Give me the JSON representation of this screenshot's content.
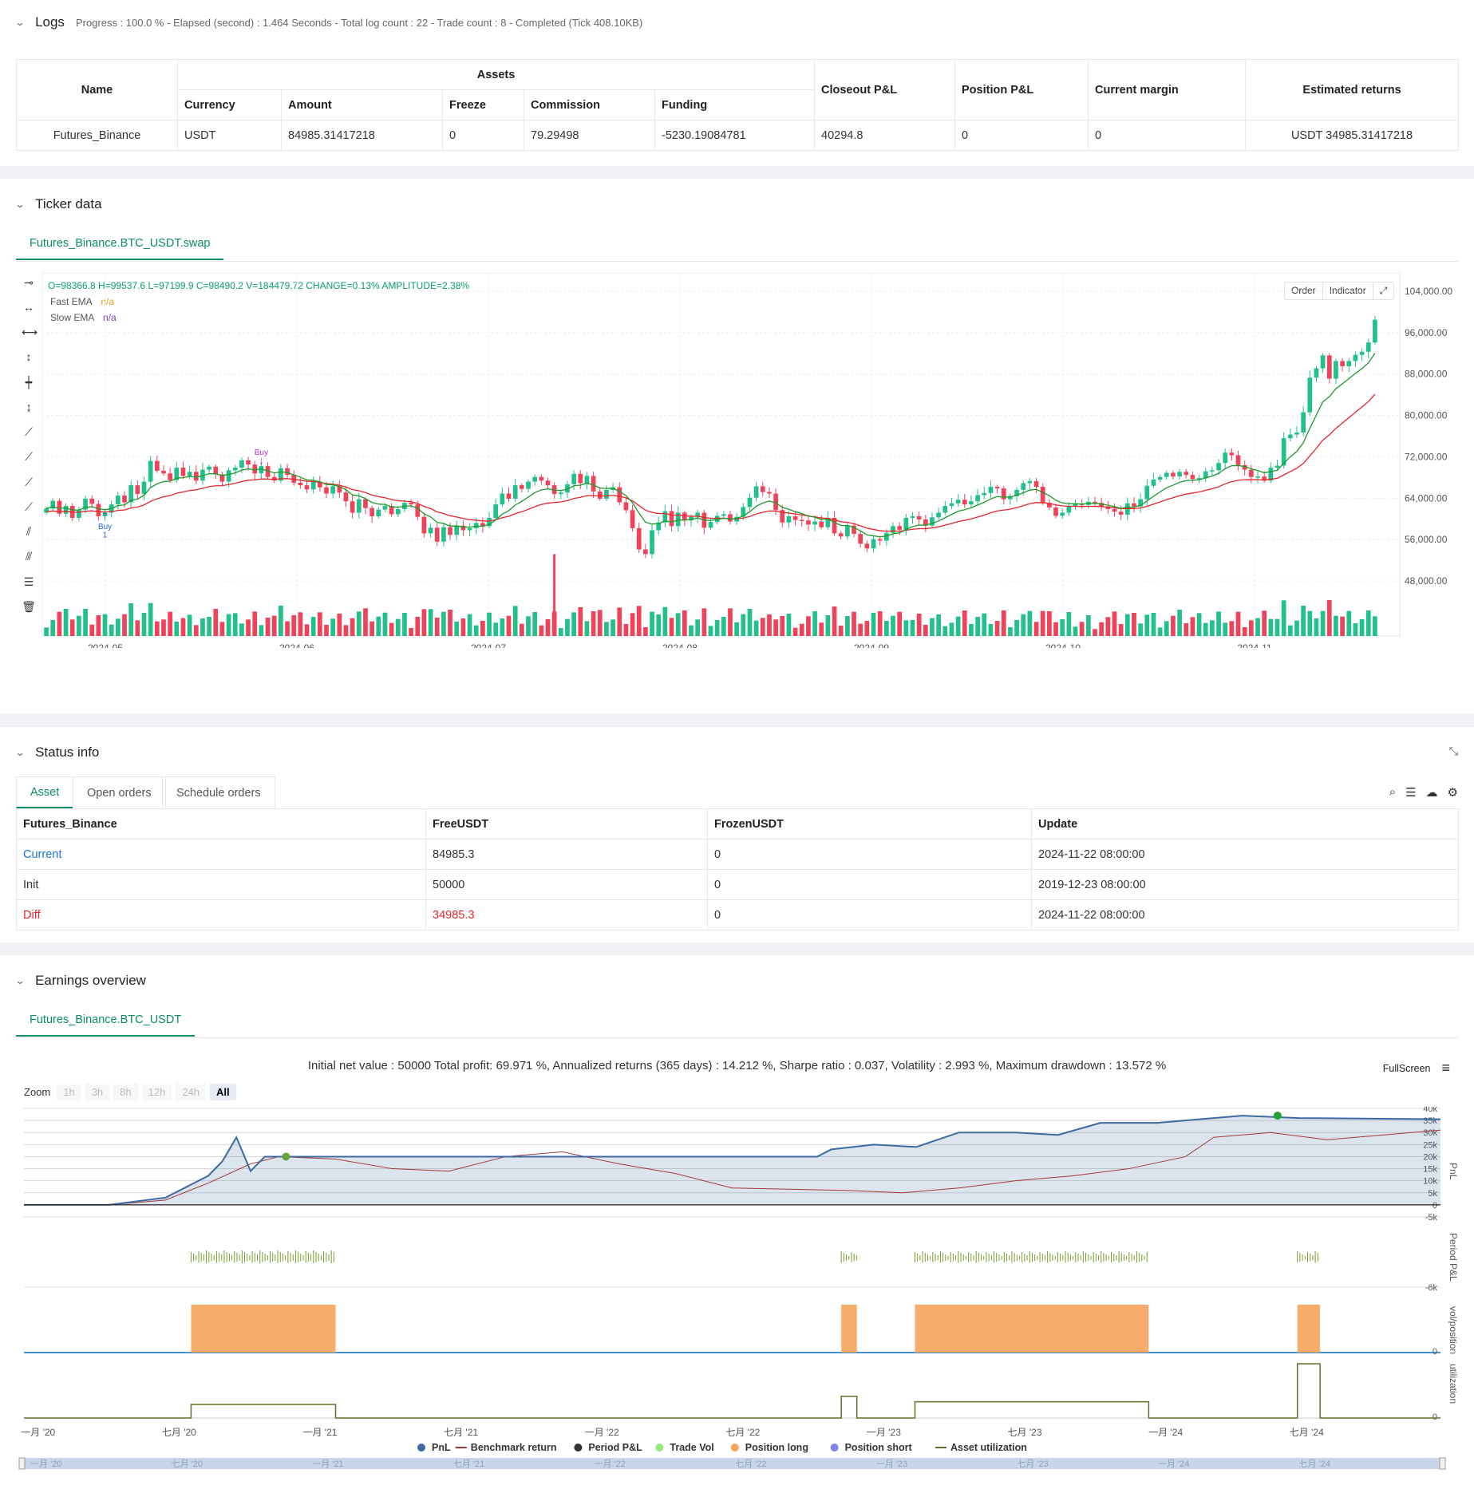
{
  "logs": {
    "title": "Logs",
    "summary": "Progress : 100.0 % - Elapsed (second) : 1.464  Seconds - Total log count : 22 - Trade count : 8 - Completed (Tick 408.10KB)",
    "headers": {
      "name": "Name",
      "assets": "Assets",
      "currency": "Currency",
      "amount": "Amount",
      "freeze": "Freeze",
      "commission": "Commission",
      "funding": "Funding",
      "closeout": "Closeout P&L",
      "position": "Position P&L",
      "margin": "Current margin",
      "returns": "Estimated returns"
    },
    "row": {
      "name": "Futures_Binance",
      "currency": "USDT",
      "amount": "84985.31417218",
      "freeze": "0",
      "commission": "79.29498",
      "funding": "-5230.19084781",
      "closeout": "40294.8",
      "position": "0",
      "margin": "0",
      "returns": "USDT 34985.31417218"
    }
  },
  "ticker": {
    "title": "Ticker data",
    "tab": "Futures_Binance.BTC_USDT.swap",
    "ohlc": "O=98366.8  H=99537.6  L=97199.9  C=98490.2  V=184479.72  CHANGE=0.13%  AMPLITUDE=2.38%",
    "fast_label": "Fast EMA",
    "fast_val": "n/a",
    "slow_label": "Slow EMA",
    "slow_val": "n/a",
    "order_btn": "Order",
    "indicator_btn": "Indicator",
    "buy_top": "Buy",
    "buy_bottom": "Buy",
    "buy_bottom_count": "1"
  },
  "chart_data": [
    {
      "type": "candlestick",
      "title": "Futures_Binance.BTC_USDT.swap",
      "x_ticks": [
        "2024-05",
        "2024-06",
        "2024-07",
        "2024-08",
        "2024-09",
        "2024-10",
        "2024-11"
      ],
      "y_ticks": [
        "104,000.00",
        "96,000.00",
        "88,000.00",
        "80,000.00",
        "72,000.00",
        "64,000.00",
        "56,000.00",
        "48,000.00"
      ],
      "ylim": [
        44000,
        106000
      ],
      "series": [
        {
          "name": "Fast EMA",
          "color": "#1a9a2a"
        },
        {
          "name": "Slow EMA",
          "color": "#e8252c"
        }
      ],
      "closes": [
        62000,
        63500,
        61000,
        62500,
        60200,
        61800,
        63900,
        62900,
        60500,
        61200,
        62800,
        64500,
        63200,
        66500,
        64800,
        67200,
        71200,
        69300,
        68800,
        67500,
        69900,
        68300,
        69100,
        67400,
        69500,
        70100,
        68600,
        67200,
        69400,
        69900,
        71300,
        70500,
        68800,
        70200,
        68100,
        67400,
        69800,
        68500,
        67000,
        66500,
        65700,
        67200,
        66100,
        64900,
        66300,
        65100,
        63400,
        61200,
        63800,
        62100,
        60500,
        61800,
        62500,
        60900,
        61900,
        63100,
        62800,
        60400,
        57200,
        58300,
        55600,
        58400,
        56900,
        58700,
        57800,
        58200,
        59200,
        58600,
        60200,
        62800,
        64900,
        63900,
        66500,
        65800,
        67200,
        68100,
        67400,
        66500,
        64800,
        65100,
        66700,
        68700,
        66900,
        68300,
        65300,
        63900,
        65600,
        66100,
        63200,
        61700,
        58200,
        54100,
        53200,
        57800,
        59300,
        61500,
        58600,
        61200,
        59700,
        60400,
        61200,
        58300,
        59400,
        60600,
        60900,
        59500,
        60400,
        62300,
        64100,
        66300,
        65200,
        64900,
        61700,
        59300,
        60500,
        59800,
        59700,
        58900,
        59500,
        58400,
        60200,
        57200,
        56600,
        58700,
        57100,
        55200,
        54300,
        56100,
        55800,
        57300,
        58600,
        57900,
        60200,
        60500,
        59900,
        58700,
        60300,
        61200,
        62500,
        63000,
        63700,
        62800,
        63400,
        64600,
        65000,
        66200,
        65900,
        63800,
        64400,
        65600,
        66900,
        67300,
        66200,
        63100,
        62200,
        60600,
        61200,
        62400,
        62900,
        62700,
        63300,
        63100,
        62400,
        61900,
        61400,
        60800,
        63000,
        62400,
        63800,
        66400,
        67600,
        68100,
        68900,
        68200,
        69100,
        68500,
        67700,
        67900,
        69200,
        69400,
        70800,
        72800,
        72300,
        70400,
        69500,
        68100,
        68200,
        67400,
        69900,
        70300,
        75600,
        76300,
        76700,
        80600,
        87300,
        89100,
        91600,
        87100,
        90500,
        89500,
        90500,
        91700,
        92300,
        94100,
        98500
      ],
      "volume_note": "volume bars colored by candle direction"
    },
    {
      "type": "line",
      "title": "Initial net value : 50000 Total profit: 69.971 %, Annualized returns (365 days) : 14.212 %, Sharpe ratio : 0.037, Volatility : 2.993 %, Maximum drawdown : 13.572 %",
      "x_ticks": [
        "一月 '20",
        "七月 '20",
        "一月 '21",
        "七月 '21",
        "一月 '22",
        "七月 '22",
        "一月 '23",
        "七月 '23",
        "一月 '24",
        "七月 '24"
      ],
      "pnl_y_ticks": [
        "40k",
        "35k",
        "30k",
        "25k",
        "20k",
        "15k",
        "10k",
        "5k",
        "0",
        "-5k"
      ],
      "ylim": [
        -5000,
        40000
      ],
      "series": [
        {
          "name": "PnL",
          "color": "#3d6aa1"
        },
        {
          "name": "Benchmark return",
          "color": "#a23a3a"
        },
        {
          "name": "Period P&L",
          "color": "#333333"
        },
        {
          "name": "Trade Vol",
          "color": "#90ed7d"
        },
        {
          "name": "Position long",
          "color": "#f7a35c"
        },
        {
          "name": "Position short",
          "color": "#8085e9"
        },
        {
          "name": "Asset utilization",
          "color": "#6b6b2a"
        }
      ],
      "pnl_points": [
        [
          0,
          0
        ],
        [
          6,
          0
        ],
        [
          10,
          3000
        ],
        [
          13,
          12000
        ],
        [
          14,
          18000
        ],
        [
          15,
          28000
        ],
        [
          16,
          14000
        ],
        [
          17,
          20000
        ],
        [
          20,
          20000
        ],
        [
          56,
          20000
        ],
        [
          57,
          23000
        ],
        [
          60,
          25000
        ],
        [
          63,
          24000
        ],
        [
          66,
          30000
        ],
        [
          70,
          30000
        ],
        [
          73,
          29000
        ],
        [
          76,
          34000
        ],
        [
          80,
          34000
        ],
        [
          86,
          37000
        ],
        [
          90,
          36000
        ],
        [
          100,
          35500
        ]
      ],
      "benchmark_points": [
        [
          0,
          0
        ],
        [
          6,
          0
        ],
        [
          10,
          2000
        ],
        [
          13,
          9000
        ],
        [
          16,
          17000
        ],
        [
          18,
          20000
        ],
        [
          22,
          19000
        ],
        [
          26,
          15000
        ],
        [
          30,
          14000
        ],
        [
          34,
          20000
        ],
        [
          38,
          22000
        ],
        [
          42,
          17000
        ],
        [
          46,
          13000
        ],
        [
          50,
          7000
        ],
        [
          54,
          6500
        ],
        [
          58,
          6000
        ],
        [
          62,
          5000
        ],
        [
          66,
          7000
        ],
        [
          70,
          10000
        ],
        [
          74,
          12000
        ],
        [
          78,
          15000
        ],
        [
          82,
          20000
        ],
        [
          84,
          28000
        ],
        [
          88,
          30000
        ],
        [
          92,
          27000
        ],
        [
          96,
          29000
        ],
        [
          100,
          31000
        ]
      ],
      "position_long_spans": [
        [
          11.8,
          22.0
        ],
        [
          57.7,
          58.8
        ],
        [
          62.9,
          79.4
        ],
        [
          89.9,
          91.5
        ]
      ],
      "utilization_spans": [
        [
          11.8,
          22.0,
          0.25
        ],
        [
          57.7,
          58.8,
          0.4
        ],
        [
          62.9,
          79.4,
          0.3
        ],
        [
          89.9,
          91.5,
          1.0
        ]
      ]
    }
  ],
  "status": {
    "title": "Status info",
    "tabs": [
      "Asset",
      "Open orders",
      "Schedule orders"
    ],
    "headers": [
      "Futures_Binance",
      "FreeUSDT",
      "FrozenUSDT",
      "Update"
    ],
    "rows": [
      {
        "label": "Current",
        "free": "84985.3",
        "frozen": "0",
        "update": "2024-11-22 08:00:00",
        "color": "#1a73e8"
      },
      {
        "label": "Init",
        "free": "50000",
        "frozen": "0",
        "update": "2019-12-23 08:00:00",
        "color": "#333333"
      },
      {
        "label": "Diff",
        "free": "34985.3",
        "frozen": "0",
        "update": "2024-11-22 08:00:00",
        "color": "#e8252c"
      }
    ]
  },
  "earnings": {
    "title": "Earnings overview",
    "tab": "Futures_Binance.BTC_USDT",
    "summary": "Initial net value : 50000 Total profit: 69.971 %, Annualized returns (365 days) : 14.212 %, Sharpe ratio : 0.037, Volatility : 2.993 %, Maximum drawdown : 13.572 %",
    "fullscreen": "FullScreen",
    "zoom_label": "Zoom",
    "zoom_options": [
      "1h",
      "3h",
      "8h",
      "12h",
      "24h",
      "All"
    ],
    "axis_titles": [
      "PnL",
      "Period P&L",
      "vol/position",
      "utilization"
    ],
    "period_tick": "-6k",
    "zero": "0"
  }
}
